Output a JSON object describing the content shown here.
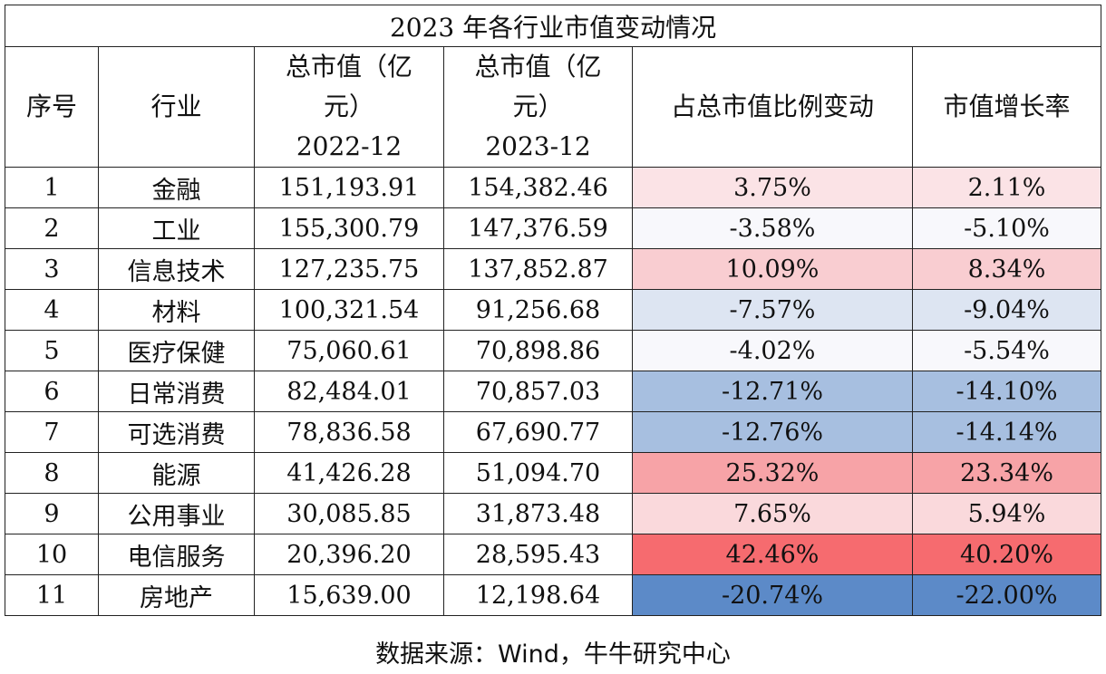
{
  "title": "2023 年各行业市值变动情况",
  "headers": {
    "seq": "序号",
    "industry": "行业",
    "mv2022_l1": "总市值（亿",
    "mv2022_l2": "元）",
    "mv2022_l3": "2022-12",
    "mv2023_l1": "总市值（亿",
    "mv2023_l2": "元）",
    "mv2023_l3": "2023-12",
    "ratio_change": "占总市值比例变动",
    "growth": "市值增长率"
  },
  "rows": [
    {
      "seq": "1",
      "industry": "金融",
      "mv2022": "151,193.91",
      "mv2023": "154,382.46",
      "ratio_change": "3.75%",
      "growth": "2.11%",
      "ratio_color": "#fbe3e6",
      "growth_color": "#fbe3e6"
    },
    {
      "seq": "2",
      "industry": "工业",
      "mv2022": "155,300.79",
      "mv2023": "147,376.59",
      "ratio_change": "-3.58%",
      "growth": "-5.10%",
      "ratio_color": "#f8f8fc",
      "growth_color": "#f8f8fc"
    },
    {
      "seq": "3",
      "industry": "信息技术",
      "mv2022": "127,235.75",
      "mv2023": "137,852.87",
      "ratio_change": "10.09%",
      "growth": "8.34%",
      "ratio_color": "#f9cdd1",
      "growth_color": "#f9cdd1"
    },
    {
      "seq": "4",
      "industry": "材料",
      "mv2022": "100,321.54",
      "mv2023": "91,256.68",
      "ratio_change": "-7.57%",
      "growth": "-9.04%",
      "ratio_color": "#dde5f2",
      "growth_color": "#dde5f2"
    },
    {
      "seq": "5",
      "industry": "医疗保健",
      "mv2022": "75,060.61",
      "mv2023": "70,898.86",
      "ratio_change": "-4.02%",
      "growth": "-5.54%",
      "ratio_color": "#f8f8fc",
      "growth_color": "#f8f8fc"
    },
    {
      "seq": "6",
      "industry": "日常消费",
      "mv2022": "82,484.01",
      "mv2023": "70,857.03",
      "ratio_change": "-12.71%",
      "growth": "-14.10%",
      "ratio_color": "#a7bfe0",
      "growth_color": "#a7bfe0"
    },
    {
      "seq": "7",
      "industry": "可选消费",
      "mv2022": "78,836.58",
      "mv2023": "67,690.77",
      "ratio_change": "-12.76%",
      "growth": "-14.14%",
      "ratio_color": "#a7bfe0",
      "growth_color": "#a7bfe0"
    },
    {
      "seq": "8",
      "industry": "能源",
      "mv2022": "41,426.28",
      "mv2023": "51,094.70",
      "ratio_change": "25.32%",
      "growth": "23.34%",
      "ratio_color": "#f7a3a7",
      "growth_color": "#f7a3a7"
    },
    {
      "seq": "9",
      "industry": "公用事业",
      "mv2022": "30,085.85",
      "mv2023": "31,873.48",
      "ratio_change": "7.65%",
      "growth": "5.94%",
      "ratio_color": "#fad9dc",
      "growth_color": "#fad9dc"
    },
    {
      "seq": "10",
      "industry": "电信服务",
      "mv2022": "20,396.20",
      "mv2023": "28,595.43",
      "ratio_change": "42.46%",
      "growth": "40.20%",
      "ratio_color": "#f66b6f",
      "growth_color": "#f66b6f"
    },
    {
      "seq": "11",
      "industry": "房地产",
      "mv2022": "15,639.00",
      "mv2023": "12,198.64",
      "ratio_change": "-20.74%",
      "growth": "-22.00%",
      "ratio_color": "#5c8ac8",
      "growth_color": "#5c8ac8"
    }
  ],
  "source": "数据来源：Wind，牛牛研究中心"
}
